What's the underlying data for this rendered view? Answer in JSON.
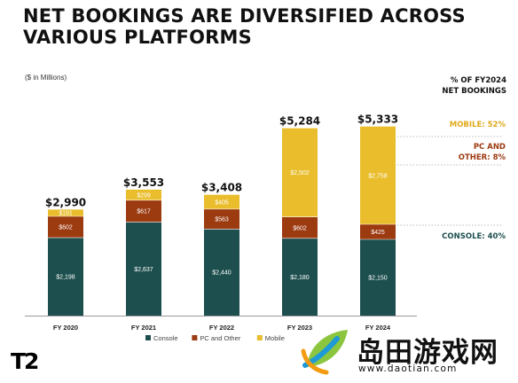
{
  "header": {
    "title_line1": "NET BOOKINGS ARE DIVERSIFIED ACROSS",
    "title_line2": "VARIOUS PLATFORMS",
    "unit_note": "($ in Millions)"
  },
  "side_panel": {
    "title_line1": "% OF FY2024",
    "title_line2": "NET BOOKINGS",
    "mobile_label": "MOBILE: 52%",
    "pc_label_line1": "PC AND",
    "pc_label_line2": "OTHER: 8%",
    "console_label": "CONSOLE: 40%"
  },
  "logo": {
    "text": "T2"
  },
  "watermark": {
    "cn_text": "岛田游戏网",
    "url": "www.daotian.com"
  },
  "colors": {
    "console": "#1d4f4e",
    "pc": "#9c3a10",
    "mobile": "#e9bd2c",
    "connector": "#bdbdbd"
  },
  "chart_data": {
    "type": "bar",
    "stacked": true,
    "title": "",
    "xlabel": "",
    "ylabel": "",
    "categories": [
      "FY 2020",
      "FY 2021",
      "FY 2022",
      "FY 2023",
      "FY 2024"
    ],
    "totals": [
      "$2,990",
      "$3,553",
      "$3,408",
      "$5,284",
      "$5,333"
    ],
    "series": [
      {
        "name": "Console",
        "values": [
          2198,
          2637,
          2440,
          2180,
          2150
        ],
        "labels": [
          "$2,198",
          "$2,637",
          "$2,440",
          "$2,180",
          "$2,150"
        ]
      },
      {
        "name": "PC and Other",
        "values": [
          602,
          617,
          563,
          602,
          425
        ],
        "labels": [
          "$602",
          "$617",
          "$563",
          "$602",
          "$425"
        ]
      },
      {
        "name": "Mobile",
        "values": [
          191,
          299,
          405,
          2502,
          2758
        ],
        "labels": [
          "$191",
          "$299",
          "$405",
          "$2,502",
          "$2,758"
        ]
      }
    ],
    "legend_position": "bottom-center",
    "grid": false
  }
}
